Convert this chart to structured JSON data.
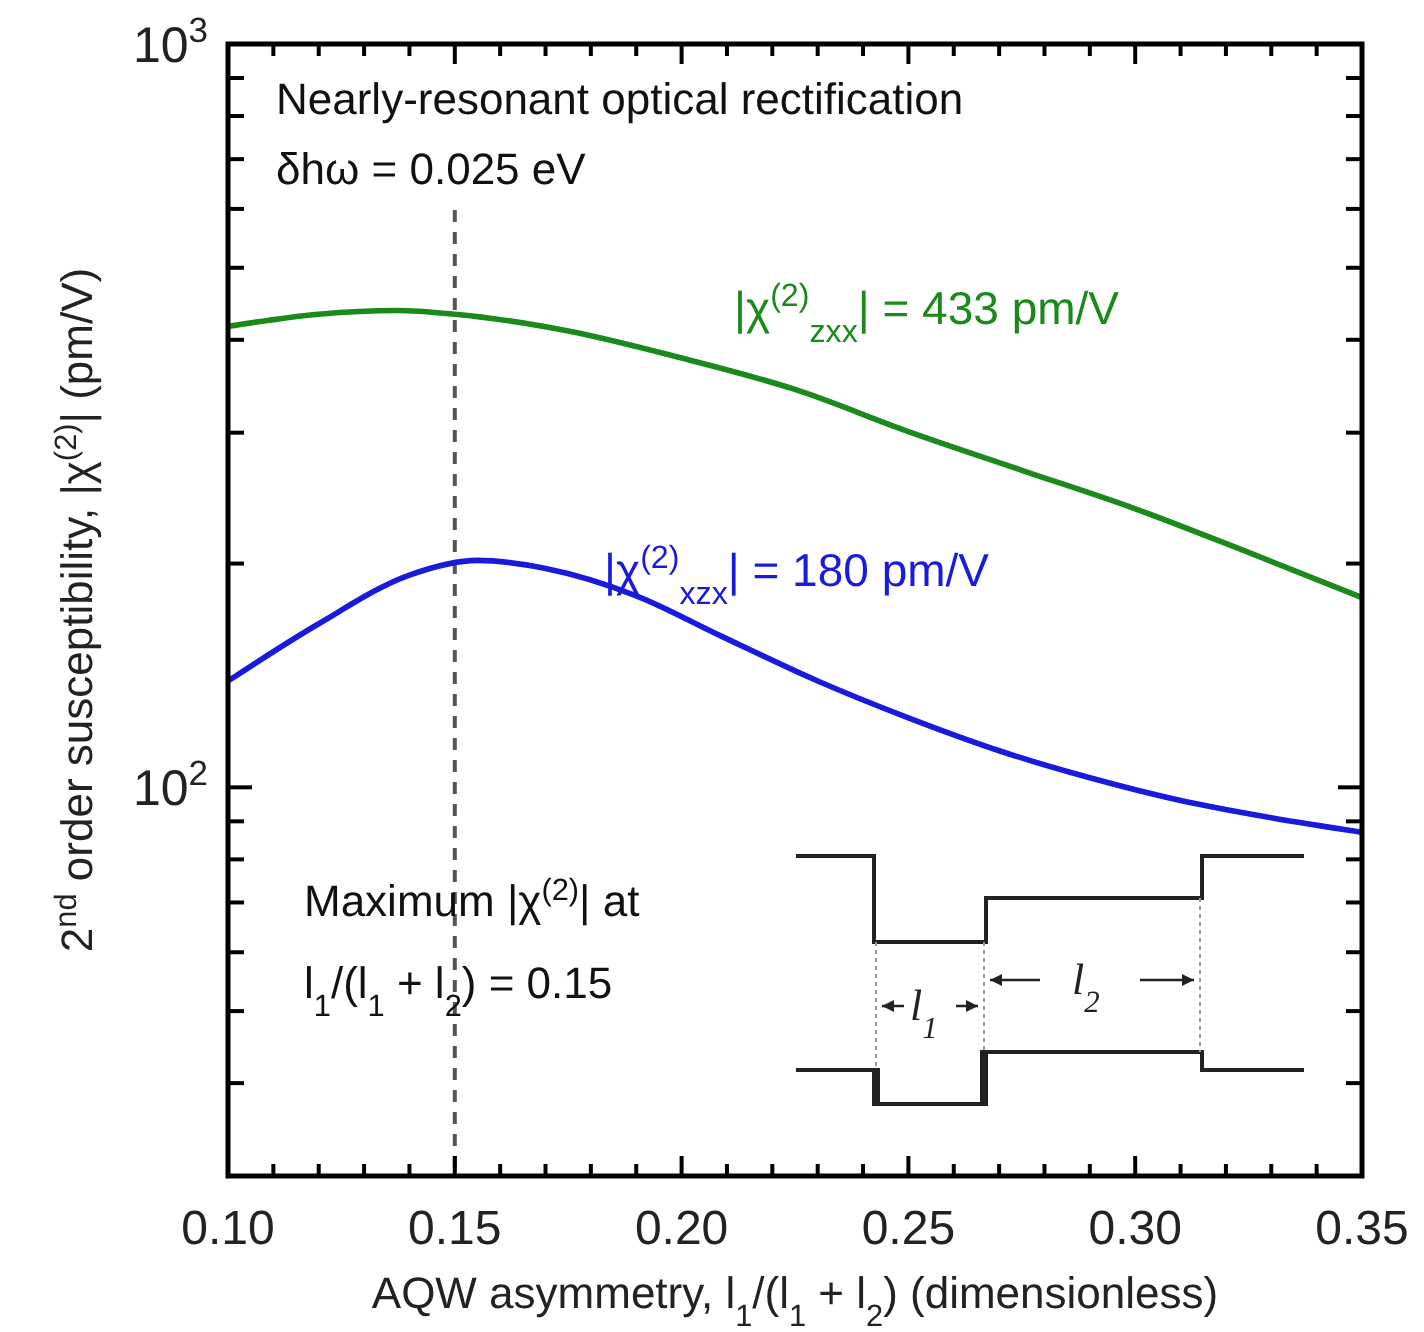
{
  "chart_data": {
    "type": "line",
    "xlabel": "AQW asymmetry, l$_{1}$/(l$_{1}$ + l$_{2}$) (dimensionless)",
    "ylabel": "2$^{nd}$ order susceptibility, |χ$^{(2)}$| (pm/V)",
    "log": "y",
    "xlim": [
      0.1,
      0.35
    ],
    "ylim": [
      30,
      1000
    ],
    "xticks": [
      {
        "value": 0.1,
        "label": "0.10"
      },
      {
        "value": 0.11,
        "label": null
      },
      {
        "value": 0.12,
        "label": null
      },
      {
        "value": 0.13,
        "label": null
      },
      {
        "value": 0.14,
        "label": null
      },
      {
        "value": 0.15,
        "label": "0.15"
      },
      {
        "value": 0.16,
        "label": null
      },
      {
        "value": 0.17,
        "label": null
      },
      {
        "value": 0.18,
        "label": null
      },
      {
        "value": 0.19,
        "label": null
      },
      {
        "value": 0.2,
        "label": "0.20"
      },
      {
        "value": 0.21,
        "label": null
      },
      {
        "value": 0.22,
        "label": null
      },
      {
        "value": 0.23,
        "label": null
      },
      {
        "value": 0.24,
        "label": null
      },
      {
        "value": 0.25,
        "label": "0.25"
      },
      {
        "value": 0.26,
        "label": null
      },
      {
        "value": 0.27,
        "label": null
      },
      {
        "value": 0.28,
        "label": null
      },
      {
        "value": 0.29,
        "label": null
      },
      {
        "value": 0.3,
        "label": "0.30"
      },
      {
        "value": 0.31,
        "label": null
      },
      {
        "value": 0.32,
        "label": null
      },
      {
        "value": 0.33,
        "label": null
      },
      {
        "value": 0.34,
        "label": null
      },
      {
        "value": 0.35,
        "label": "0.35"
      }
    ],
    "yticks": [
      {
        "value": 40,
        "label": null
      },
      {
        "value": 50,
        "label": null
      },
      {
        "value": 60,
        "label": null
      },
      {
        "value": 70,
        "label": null
      },
      {
        "value": 80,
        "label": null
      },
      {
        "value": 90,
        "label": null
      },
      {
        "value": 100,
        "label": "10$^{2}$"
      },
      {
        "value": 200,
        "label": null
      },
      {
        "value": 300,
        "label": null
      },
      {
        "value": 400,
        "label": null
      },
      {
        "value": 500,
        "label": null
      },
      {
        "value": 600,
        "label": null
      },
      {
        "value": 700,
        "label": null
      },
      {
        "value": 800,
        "label": null
      },
      {
        "value": 900,
        "label": null
      },
      {
        "value": 1000,
        "label": "10$^{3}$"
      }
    ],
    "line_style": "solid",
    "marker": "none",
    "grid": false,
    "legend": false,
    "series": [
      {
        "name": "|χ$^{(2)}$$_{zxx}$| = 433 pm/V",
        "color": "#1a8a1a",
        "x": [
          0.1,
          0.12,
          0.137,
          0.15,
          0.175,
          0.2,
          0.225,
          0.25,
          0.275,
          0.3,
          0.325,
          0.35
        ],
        "values": [
          417,
          433,
          438,
          433,
          411,
          378,
          343,
          301,
          267,
          237,
          207,
          180
        ]
      },
      {
        "name": "|χ$^{(2)}$$_{xzx}$| = 180 pm/V",
        "color": "#1a1add",
        "x": [
          0.1,
          0.12,
          0.14,
          0.155,
          0.17,
          0.19,
          0.2085,
          0.23,
          0.25,
          0.27,
          0.29,
          0.31,
          0.33,
          0.35
        ],
        "values": [
          139,
          166,
          193,
          202,
          197,
          181,
          160,
          139,
          124,
          112,
          103,
          96,
          91,
          87
        ]
      }
    ],
    "ref_lines": [
      {
        "axis": "x",
        "value": 0.15,
        "line_style": "dashed",
        "color": "#555555"
      }
    ],
    "annotations": [
      "Nearly-resonant optical rectification",
      "δhω = 0.025 eV",
      "Maximum |χ$^{(2)}$| at",
      "l$_{1}$/(l$_{1}$ + l$_{2}$) = 0.15",
      "l$_{1}$",
      "l$_{2}$"
    ]
  }
}
